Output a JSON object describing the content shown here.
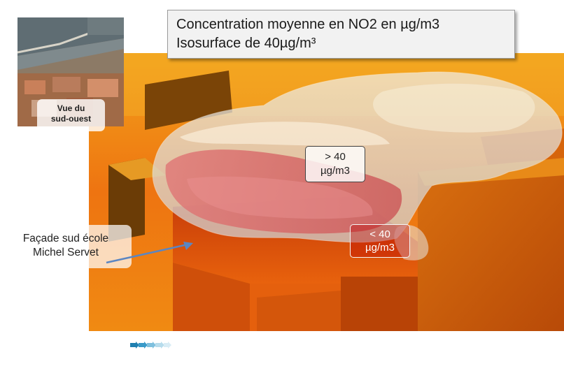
{
  "title": {
    "line1": "Concentration moyenne en NO2 en µg/m3",
    "line2": "Isosurface de 40µg/m³"
  },
  "inset": {
    "label_line1": "Vue du",
    "label_line2": "sud-ouest"
  },
  "labels": {
    "above_value": "> 40",
    "above_unit": "µg/m3",
    "below_value": "< 40",
    "below_unit": "µg/m3"
  },
  "facade": {
    "line1": "Façade sud école",
    "line2": "Michel Servet"
  },
  "colors": {
    "concentration_high": "#e93b12",
    "concentration_mid": "#f28a10",
    "isosurface_inner": "#d96a6a",
    "isosurface_outer": "#e6e4e0",
    "arrow": "#5b86c2"
  },
  "logo": {
    "icon": "arrow-chain-logo-icon"
  }
}
